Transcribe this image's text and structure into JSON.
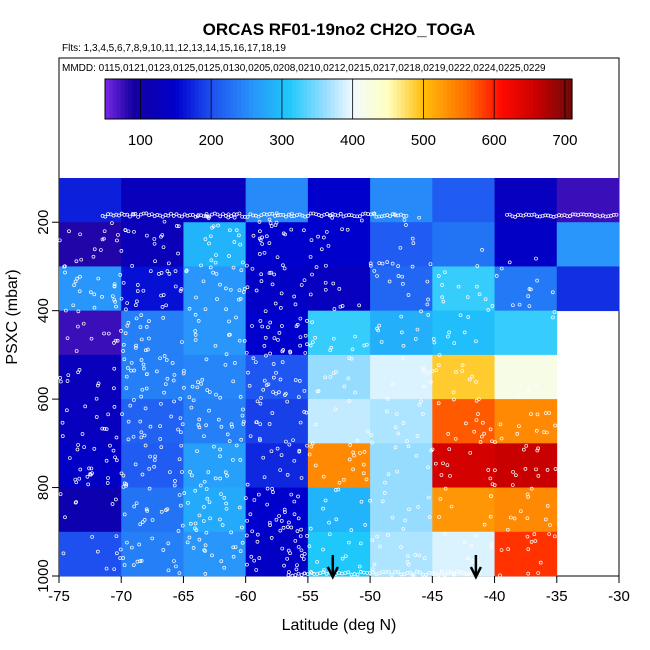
{
  "chart_data": {
    "type": "heatmap",
    "title": "ORCAS RF01-19no2 CH2O_TOGA",
    "flights_line": "Flts: 1,3,4,5,6,7,8,9,10,11,12,13,14,15,16,17,18,19",
    "dates_line": "MMDD: 0115,0121,0123,0125,0125,0130,0205,0208,0210,0212,0215,0217,0218,0219,0222,0224,0225,0229",
    "xlabel": "Latitude (deg N)",
    "ylabel": "PSXC (mbar)",
    "xlim": [
      -75,
      -30
    ],
    "ylim": [
      1000,
      100
    ],
    "x_ticks": [
      -75,
      -70,
      -65,
      -60,
      -55,
      -50,
      -45,
      -40,
      -35,
      -30
    ],
    "y_ticks": [
      200,
      400,
      600,
      800,
      1000
    ],
    "colorbar": {
      "range": [
        50,
        710
      ],
      "ticks": [
        100,
        200,
        300,
        400,
        500,
        600,
        700
      ]
    },
    "cell_width_deg": 5,
    "cell_height_mbar": 100,
    "cell_x_starts": [
      -75,
      -70,
      -65,
      -60,
      -55,
      -50,
      -45,
      -40,
      -35
    ],
    "cell_p_tops": [
      100,
      200,
      300,
      400,
      500,
      600,
      700,
      800,
      900
    ],
    "values": [
      [
        170,
        125,
        125,
        250,
        150,
        250,
        210,
        130,
        75
      ],
      [
        85,
        120,
        290,
        150,
        150,
        210,
        230,
        140,
        260
      ],
      [
        260,
        160,
        260,
        140,
        130,
        220,
        320,
        235,
        180
      ],
      [
        75,
        240,
        260,
        150,
        320,
        285,
        300,
        320,
        null
      ],
      [
        125,
        240,
        245,
        205,
        360,
        390,
        490,
        420,
        null
      ],
      [
        130,
        215,
        240,
        190,
        380,
        370,
        570,
        540,
        null
      ],
      [
        140,
        210,
        270,
        175,
        540,
        360,
        650,
        660,
        null
      ],
      [
        110,
        230,
        280,
        150,
        290,
        360,
        530,
        540,
        null
      ],
      [
        200,
        240,
        260,
        140,
        310,
        370,
        390,
        590,
        null
      ]
    ],
    "markers": [
      {
        "type": "down-arrow",
        "x": -53
      },
      {
        "type": "down-arrow",
        "x": -41.5
      }
    ]
  }
}
